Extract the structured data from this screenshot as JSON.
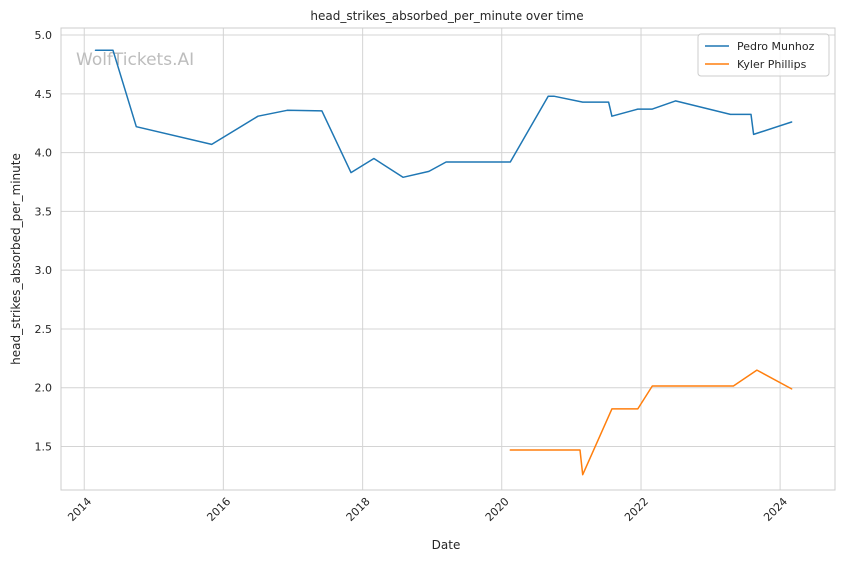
{
  "chart_data": {
    "type": "line",
    "title": "head_strikes_absorbed_per_minute over time",
    "xlabel": "Date",
    "ylabel": "head_strikes_absorbed_per_minute",
    "watermark": "WolfTickets.AI",
    "x_axis": {
      "kind": "date",
      "min": "2013-09-01",
      "max": "2024-10-15"
    },
    "ylim": [
      1.13,
      5.06
    ],
    "x_ticks": [
      "2014",
      "2016",
      "2018",
      "2020",
      "2022",
      "2024"
    ],
    "y_ticks": [
      "1.5",
      "2.0",
      "2.5",
      "3.0",
      "3.5",
      "4.0",
      "4.5",
      "5.0"
    ],
    "grid": true,
    "legend": {
      "position": "top-right"
    },
    "series": [
      {
        "name": "Pedro Munhoz",
        "color": "#1f77b4",
        "points": [
          {
            "x": "2014-03-01",
            "y": 4.87
          },
          {
            "x": "2014-06-01",
            "y": 4.87
          },
          {
            "x": "2014-10-01",
            "y": 4.22
          },
          {
            "x": "2015-11-01",
            "y": 4.07
          },
          {
            "x": "2016-07-01",
            "y": 4.31
          },
          {
            "x": "2016-12-01",
            "y": 4.36
          },
          {
            "x": "2017-06-01",
            "y": 4.355
          },
          {
            "x": "2017-11-01",
            "y": 3.83
          },
          {
            "x": "2018-03-01",
            "y": 3.95
          },
          {
            "x": "2018-08-01",
            "y": 3.79
          },
          {
            "x": "2018-12-15",
            "y": 3.84
          },
          {
            "x": "2019-03-15",
            "y": 3.92
          },
          {
            "x": "2020-02-15",
            "y": 3.92
          },
          {
            "x": "2020-09-01",
            "y": 4.48
          },
          {
            "x": "2020-10-01",
            "y": 4.48
          },
          {
            "x": "2021-03-01",
            "y": 4.43
          },
          {
            "x": "2021-07-15",
            "y": 4.43
          },
          {
            "x": "2021-08-01",
            "y": 4.31
          },
          {
            "x": "2021-12-15",
            "y": 4.37
          },
          {
            "x": "2022-03-01",
            "y": 4.37
          },
          {
            "x": "2022-07-01",
            "y": 4.44
          },
          {
            "x": "2023-04-15",
            "y": 4.325
          },
          {
            "x": "2023-08-01",
            "y": 4.325
          },
          {
            "x": "2023-08-15",
            "y": 4.155
          },
          {
            "x": "2024-03-01",
            "y": 4.26
          }
        ]
      },
      {
        "name": "Kyler Phillips",
        "color": "#ff7f0e",
        "points": [
          {
            "x": "2020-02-15",
            "y": 1.47
          },
          {
            "x": "2021-02-15",
            "y": 1.47
          },
          {
            "x": "2021-03-01",
            "y": 1.26
          },
          {
            "x": "2021-08-01",
            "y": 1.82
          },
          {
            "x": "2021-12-15",
            "y": 1.82
          },
          {
            "x": "2022-03-01",
            "y": 2.015
          },
          {
            "x": "2023-05-01",
            "y": 2.015
          },
          {
            "x": "2023-09-01",
            "y": 2.15
          },
          {
            "x": "2024-03-01",
            "y": 1.99
          }
        ]
      }
    ]
  }
}
